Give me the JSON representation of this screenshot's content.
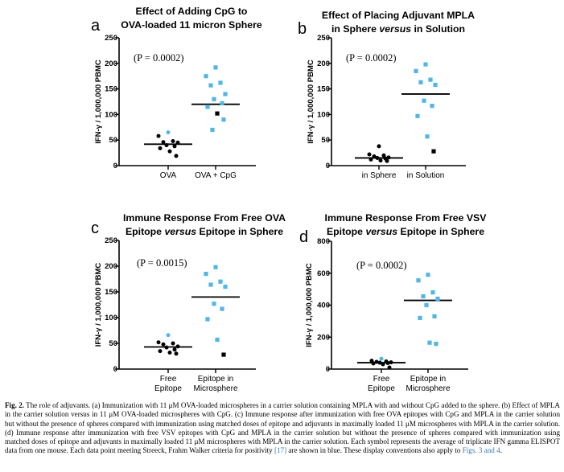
{
  "figure": {
    "panels": [
      {
        "letter": "a",
        "title_lines": [
          "Effect of Adding CpG to",
          "OVA-loaded 11 micron Sphere"
        ],
        "p_value": "(P = 0.0002)",
        "y_label": "IFN-γ / 1,000,000 PBMC",
        "categories": [
          [
            "OVA"
          ],
          [
            "OVA + CpG"
          ]
        ]
      },
      {
        "letter": "b",
        "title_lines": [
          "Effect of Placing Adjuvant MPLA",
          "in Sphere versus in Solution"
        ],
        "p_value": "(P = 0.0002)",
        "y_label": "IFN-γ / 1,000,000 PBMC",
        "categories": [
          [
            "in Sphere"
          ],
          [
            "in Solution"
          ]
        ]
      },
      {
        "letter": "c",
        "title_lines": [
          "Immune Response From Free OVA",
          "Epitope versus Epitope in Sphere"
        ],
        "p_value": "(P = 0.0015)",
        "y_label": "IFN-γ / 1,000,000 PBMC",
        "categories": [
          [
            "Free",
            "Epitope"
          ],
          [
            "Epitope in",
            "Microsphere"
          ]
        ]
      },
      {
        "letter": "d",
        "title_lines": [
          "Immune Response From Free VSV",
          "Epitope versus Epitope in Sphere"
        ],
        "p_value": "(P = 0.0002)",
        "y_label": "IFN-γ / 1,000,000 PBMC",
        "categories": [
          [
            "Free",
            "Epitope"
          ],
          [
            "Epitope in",
            "Microsphere"
          ]
        ]
      }
    ]
  },
  "colors": {
    "black": "#000000",
    "blue": "#4db8e8"
  },
  "chart_data": [
    {
      "type": "scatter",
      "panel": "a",
      "title": "Effect of Adding CpG to OVA-loaded 11 micron Sphere",
      "ylabel": "IFN-γ / 1,000,000 PBMC",
      "ylim": [
        0,
        250
      ],
      "yticks": [
        0,
        50,
        100,
        150,
        200,
        250
      ],
      "categories": [
        "OVA",
        "OVA + CpG"
      ],
      "series": [
        {
          "category": "OVA",
          "mean": 42,
          "points": [
            {
              "v": 65,
              "c": "blue"
            },
            {
              "v": 58,
              "c": "black"
            },
            {
              "v": 48,
              "c": "black"
            },
            {
              "v": 46,
              "c": "black"
            },
            {
              "v": 45,
              "c": "black"
            },
            {
              "v": 40,
              "c": "black"
            },
            {
              "v": 38,
              "c": "black"
            },
            {
              "v": 34,
              "c": "black"
            },
            {
              "v": 28,
              "c": "black"
            },
            {
              "v": 19,
              "c": "black"
            }
          ]
        },
        {
          "category": "OVA + CpG",
          "mean": 120,
          "points": [
            {
              "v": 192,
              "c": "blue"
            },
            {
              "v": 175,
              "c": "blue"
            },
            {
              "v": 162,
              "c": "blue"
            },
            {
              "v": 157,
              "c": "blue"
            },
            {
              "v": 140,
              "c": "blue"
            },
            {
              "v": 130,
              "c": "blue"
            },
            {
              "v": 122,
              "c": "blue"
            },
            {
              "v": 115,
              "c": "blue"
            },
            {
              "v": 102,
              "c": "black"
            },
            {
              "v": 90,
              "c": "blue"
            },
            {
              "v": 70,
              "c": "blue"
            }
          ]
        }
      ]
    },
    {
      "type": "scatter",
      "panel": "b",
      "title": "Effect of Placing Adjuvant MPLA in Sphere versus in Solution",
      "ylabel": "IFN-γ / 1,000,000 PBMC",
      "ylim": [
        0,
        250
      ],
      "yticks": [
        0,
        50,
        100,
        150,
        200,
        250
      ],
      "categories": [
        "in Sphere",
        "in Solution"
      ],
      "series": [
        {
          "category": "in Sphere",
          "mean": 15,
          "points": [
            {
              "v": 38,
              "c": "black"
            },
            {
              "v": 22,
              "c": "black"
            },
            {
              "v": 20,
              "c": "black"
            },
            {
              "v": 18,
              "c": "black"
            },
            {
              "v": 16,
              "c": "black"
            },
            {
              "v": 15,
              "c": "black"
            },
            {
              "v": 14,
              "c": "black"
            },
            {
              "v": 12,
              "c": "black"
            },
            {
              "v": 10,
              "c": "black"
            },
            {
              "v": 9,
              "c": "black"
            }
          ]
        },
        {
          "category": "in Solution",
          "mean": 140,
          "points": [
            {
              "v": 198,
              "c": "blue"
            },
            {
              "v": 185,
              "c": "blue"
            },
            {
              "v": 168,
              "c": "blue"
            },
            {
              "v": 163,
              "c": "blue"
            },
            {
              "v": 158,
              "c": "blue"
            },
            {
              "v": 127,
              "c": "blue"
            },
            {
              "v": 117,
              "c": "blue"
            },
            {
              "v": 97,
              "c": "blue"
            },
            {
              "v": 57,
              "c": "blue"
            },
            {
              "v": 28,
              "c": "black"
            }
          ]
        }
      ]
    },
    {
      "type": "scatter",
      "panel": "c",
      "title": "Immune Response From Free OVA Epitope versus Epitope in Sphere",
      "ylabel": "IFN-γ / 1,000,000 PBMC",
      "ylim": [
        0,
        250
      ],
      "yticks": [
        0,
        50,
        100,
        150,
        200,
        250
      ],
      "categories": [
        "Free Epitope",
        "Epitope in Microsphere"
      ],
      "series": [
        {
          "category": "Free Epitope",
          "mean": 43,
          "points": [
            {
              "v": 66,
              "c": "blue"
            },
            {
              "v": 52,
              "c": "black"
            },
            {
              "v": 50,
              "c": "black"
            },
            {
              "v": 48,
              "c": "black"
            },
            {
              "v": 44,
              "c": "black"
            },
            {
              "v": 42,
              "c": "black"
            },
            {
              "v": 38,
              "c": "black"
            },
            {
              "v": 35,
              "c": "black"
            },
            {
              "v": 32,
              "c": "black"
            },
            {
              "v": 30,
              "c": "black"
            }
          ]
        },
        {
          "category": "Epitope in Microsphere",
          "mean": 140,
          "points": [
            {
              "v": 198,
              "c": "blue"
            },
            {
              "v": 185,
              "c": "blue"
            },
            {
              "v": 170,
              "c": "blue"
            },
            {
              "v": 164,
              "c": "blue"
            },
            {
              "v": 160,
              "c": "blue"
            },
            {
              "v": 127,
              "c": "blue"
            },
            {
              "v": 117,
              "c": "blue"
            },
            {
              "v": 97,
              "c": "blue"
            },
            {
              "v": 57,
              "c": "blue"
            },
            {
              "v": 28,
              "c": "black"
            }
          ]
        }
      ]
    },
    {
      "type": "scatter",
      "panel": "d",
      "title": "Immune Response From Free VSV Epitope versus Epitope in Sphere",
      "ylabel": "IFN-γ / 1,000,000 PBMC",
      "ylim": [
        0,
        800
      ],
      "yticks": [
        0,
        200,
        400,
        600,
        800
      ],
      "categories": [
        "Free Epitope",
        "Epitope in Microsphere"
      ],
      "series": [
        {
          "category": "Free Epitope",
          "mean": 40,
          "points": [
            {
              "v": 65,
              "c": "blue"
            },
            {
              "v": 52,
              "c": "black"
            },
            {
              "v": 48,
              "c": "black"
            },
            {
              "v": 45,
              "c": "black"
            },
            {
              "v": 42,
              "c": "black"
            },
            {
              "v": 40,
              "c": "black"
            },
            {
              "v": 38,
              "c": "black"
            },
            {
              "v": 35,
              "c": "black"
            },
            {
              "v": 30,
              "c": "black"
            },
            {
              "v": 10,
              "c": "black"
            }
          ]
        },
        {
          "category": "Epitope in Microsphere",
          "mean": 430,
          "points": [
            {
              "v": 590,
              "c": "blue"
            },
            {
              "v": 555,
              "c": "blue"
            },
            {
              "v": 480,
              "c": "blue"
            },
            {
              "v": 455,
              "c": "blue"
            },
            {
              "v": 440,
              "c": "blue"
            },
            {
              "v": 400,
              "c": "blue"
            },
            {
              "v": 330,
              "c": "blue"
            },
            {
              "v": 320,
              "c": "blue"
            },
            {
              "v": 165,
              "c": "blue"
            },
            {
              "v": 158,
              "c": "blue"
            }
          ]
        }
      ]
    }
  ],
  "caption": {
    "lead": "Fig. 2.",
    "text": " The role of adjuvants. (a) Immunization with 11 μM OVA-loaded microspheres in a carrier solution containing MPLA with and without CpG added to the sphere. (b) Effect of MPLA in the carrier solution versus in 11 μM OVA-loaded microspheres with CpG. (c) Immune response after immunization with free OVA epitopes with CpG and MPLA in the carrier solution but without the presence of spheres compared with immunization using matched doses of epitope and adjuvants in maximally loaded 11 μM microspheres with MPLA in the carrier solution. (d) Immune response after immunization with free VSV epitopes with CpG and MPLA in the carrier solution but without the presence of spheres compared with immunization using matched doses of epitope and adjuvants in maximally loaded 11 μM microspheres with MPLA in the carrier solution. Each symbol represents the average of triplicate IFN gamma ELISPOT data from one mouse. Each data point meeting Streeck, Frahm Walker criteria for positivity ",
    "ref": "[17]",
    "middle": " are shown in blue. These display conventions also apply to ",
    "ref2": "Figs. 3 and 4",
    "end": "."
  }
}
